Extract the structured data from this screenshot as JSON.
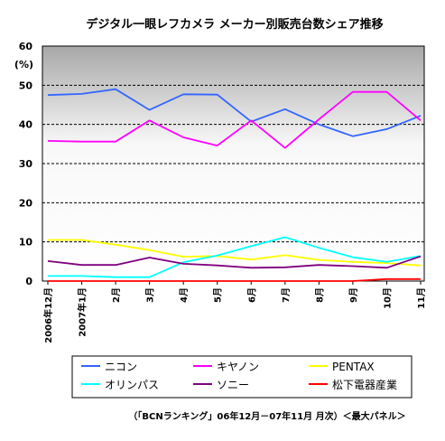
{
  "chart_data": {
    "type": "line",
    "title": "デジタル一眼レフカメラ メーカー別販売台数シェア推移",
    "ylabel": "(%)",
    "ylim": [
      0,
      60
    ],
    "yticks": [
      0,
      10,
      20,
      30,
      40,
      50,
      60
    ],
    "grid": "horizontal dashed",
    "legend_position": "bottom",
    "categories": [
      "2006年12月",
      "2007年1月",
      "2月",
      "3月",
      "4月",
      "5月",
      "6月",
      "7月",
      "8月",
      "9月",
      "10月",
      "11月"
    ],
    "series": [
      {
        "name": "ニコン",
        "color": "#3366ff",
        "values": [
          47.5,
          47.8,
          49.0,
          43.7,
          47.7,
          47.6,
          40.7,
          43.9,
          40.0,
          37.0,
          38.8,
          42.2
        ]
      },
      {
        "name": "キヤノン",
        "color": "#ff00ff",
        "values": [
          35.8,
          35.6,
          35.6,
          41.0,
          36.7,
          34.6,
          41.0,
          34.0,
          41.3,
          48.3,
          48.3,
          41.0
        ]
      },
      {
        "name": "PENTAX",
        "color": "#ffff00",
        "values": [
          10.5,
          10.5,
          9.3,
          7.9,
          6.2,
          6.4,
          5.5,
          6.6,
          5.4,
          4.9,
          4.6,
          4.0
        ]
      },
      {
        "name": "オリンパス",
        "color": "#00ffff",
        "values": [
          1.3,
          1.3,
          1.0,
          1.0,
          4.8,
          6.5,
          8.9,
          11.2,
          8.5,
          6.1,
          4.9,
          6.4
        ]
      },
      {
        "name": "ソニー",
        "color": "#800080",
        "values": [
          5.1,
          4.1,
          4.1,
          6.0,
          4.4,
          4.0,
          3.4,
          3.5,
          4.1,
          3.8,
          3.4,
          6.3
        ]
      },
      {
        "name": "松下電器産業",
        "color": "#ff0000",
        "values": [
          0.0,
          0.0,
          0.0,
          0.0,
          0.0,
          0.0,
          0.0,
          0.0,
          0.0,
          0.0,
          0.5,
          0.5
        ]
      }
    ],
    "source": "（「BCNランキング」06年12月－07年11月 月次）＜最大パネル＞"
  }
}
